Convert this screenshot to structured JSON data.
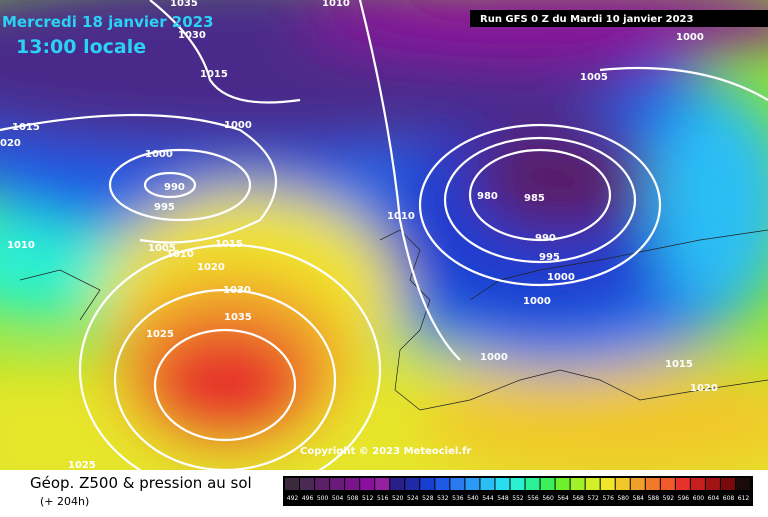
{
  "header": {
    "date": "Mercredi 18 janvier 2023",
    "time": "13:00 locale",
    "run": "Run GFS 0 Z du Mardi 10 janvier 2023"
  },
  "copyright": "Copyright © 2023 Meteociel.fr",
  "legend": {
    "title": "Géop. Z500 & pression au sol",
    "subtitle": "(+ 204h)",
    "values": [
      492,
      496,
      500,
      504,
      508,
      512,
      516,
      520,
      524,
      528,
      532,
      536,
      540,
      544,
      548,
      552,
      556,
      560,
      564,
      568,
      572,
      576,
      580,
      584,
      588,
      592,
      596,
      600,
      604,
      608,
      612
    ],
    "colors": [
      "#3b2a3b",
      "#4a2a55",
      "#5a1f66",
      "#6a1a78",
      "#7a148a",
      "#8a0f9c",
      "#96219e",
      "#2a1f8a",
      "#1f2aa8",
      "#1a3ed0",
      "#1f5ae6",
      "#2a7af0",
      "#2a9af5",
      "#2abef5",
      "#2adcf0",
      "#2af0d2",
      "#2af096",
      "#3cf05a",
      "#6ef02a",
      "#a0f02a",
      "#d2f02a",
      "#f0e62a",
      "#f0c82a",
      "#f0a02a",
      "#f07a2a",
      "#f05a2a",
      "#e6322a",
      "#c81e1e",
      "#a01414",
      "#780a0a",
      "#1a0a0a"
    ]
  },
  "isobars": [
    "1010",
    "1035",
    "1030",
    "1015",
    "1005",
    "1000",
    "1015",
    "1000",
    "020",
    "1000",
    "990",
    "995",
    "1010",
    "980",
    "985",
    "990",
    "995",
    "1010",
    "1005",
    "1010",
    "1015",
    "1020",
    "1030",
    "1000",
    "1000",
    "1035",
    "1025",
    "1000",
    "1015",
    "1020",
    "1025"
  ]
}
